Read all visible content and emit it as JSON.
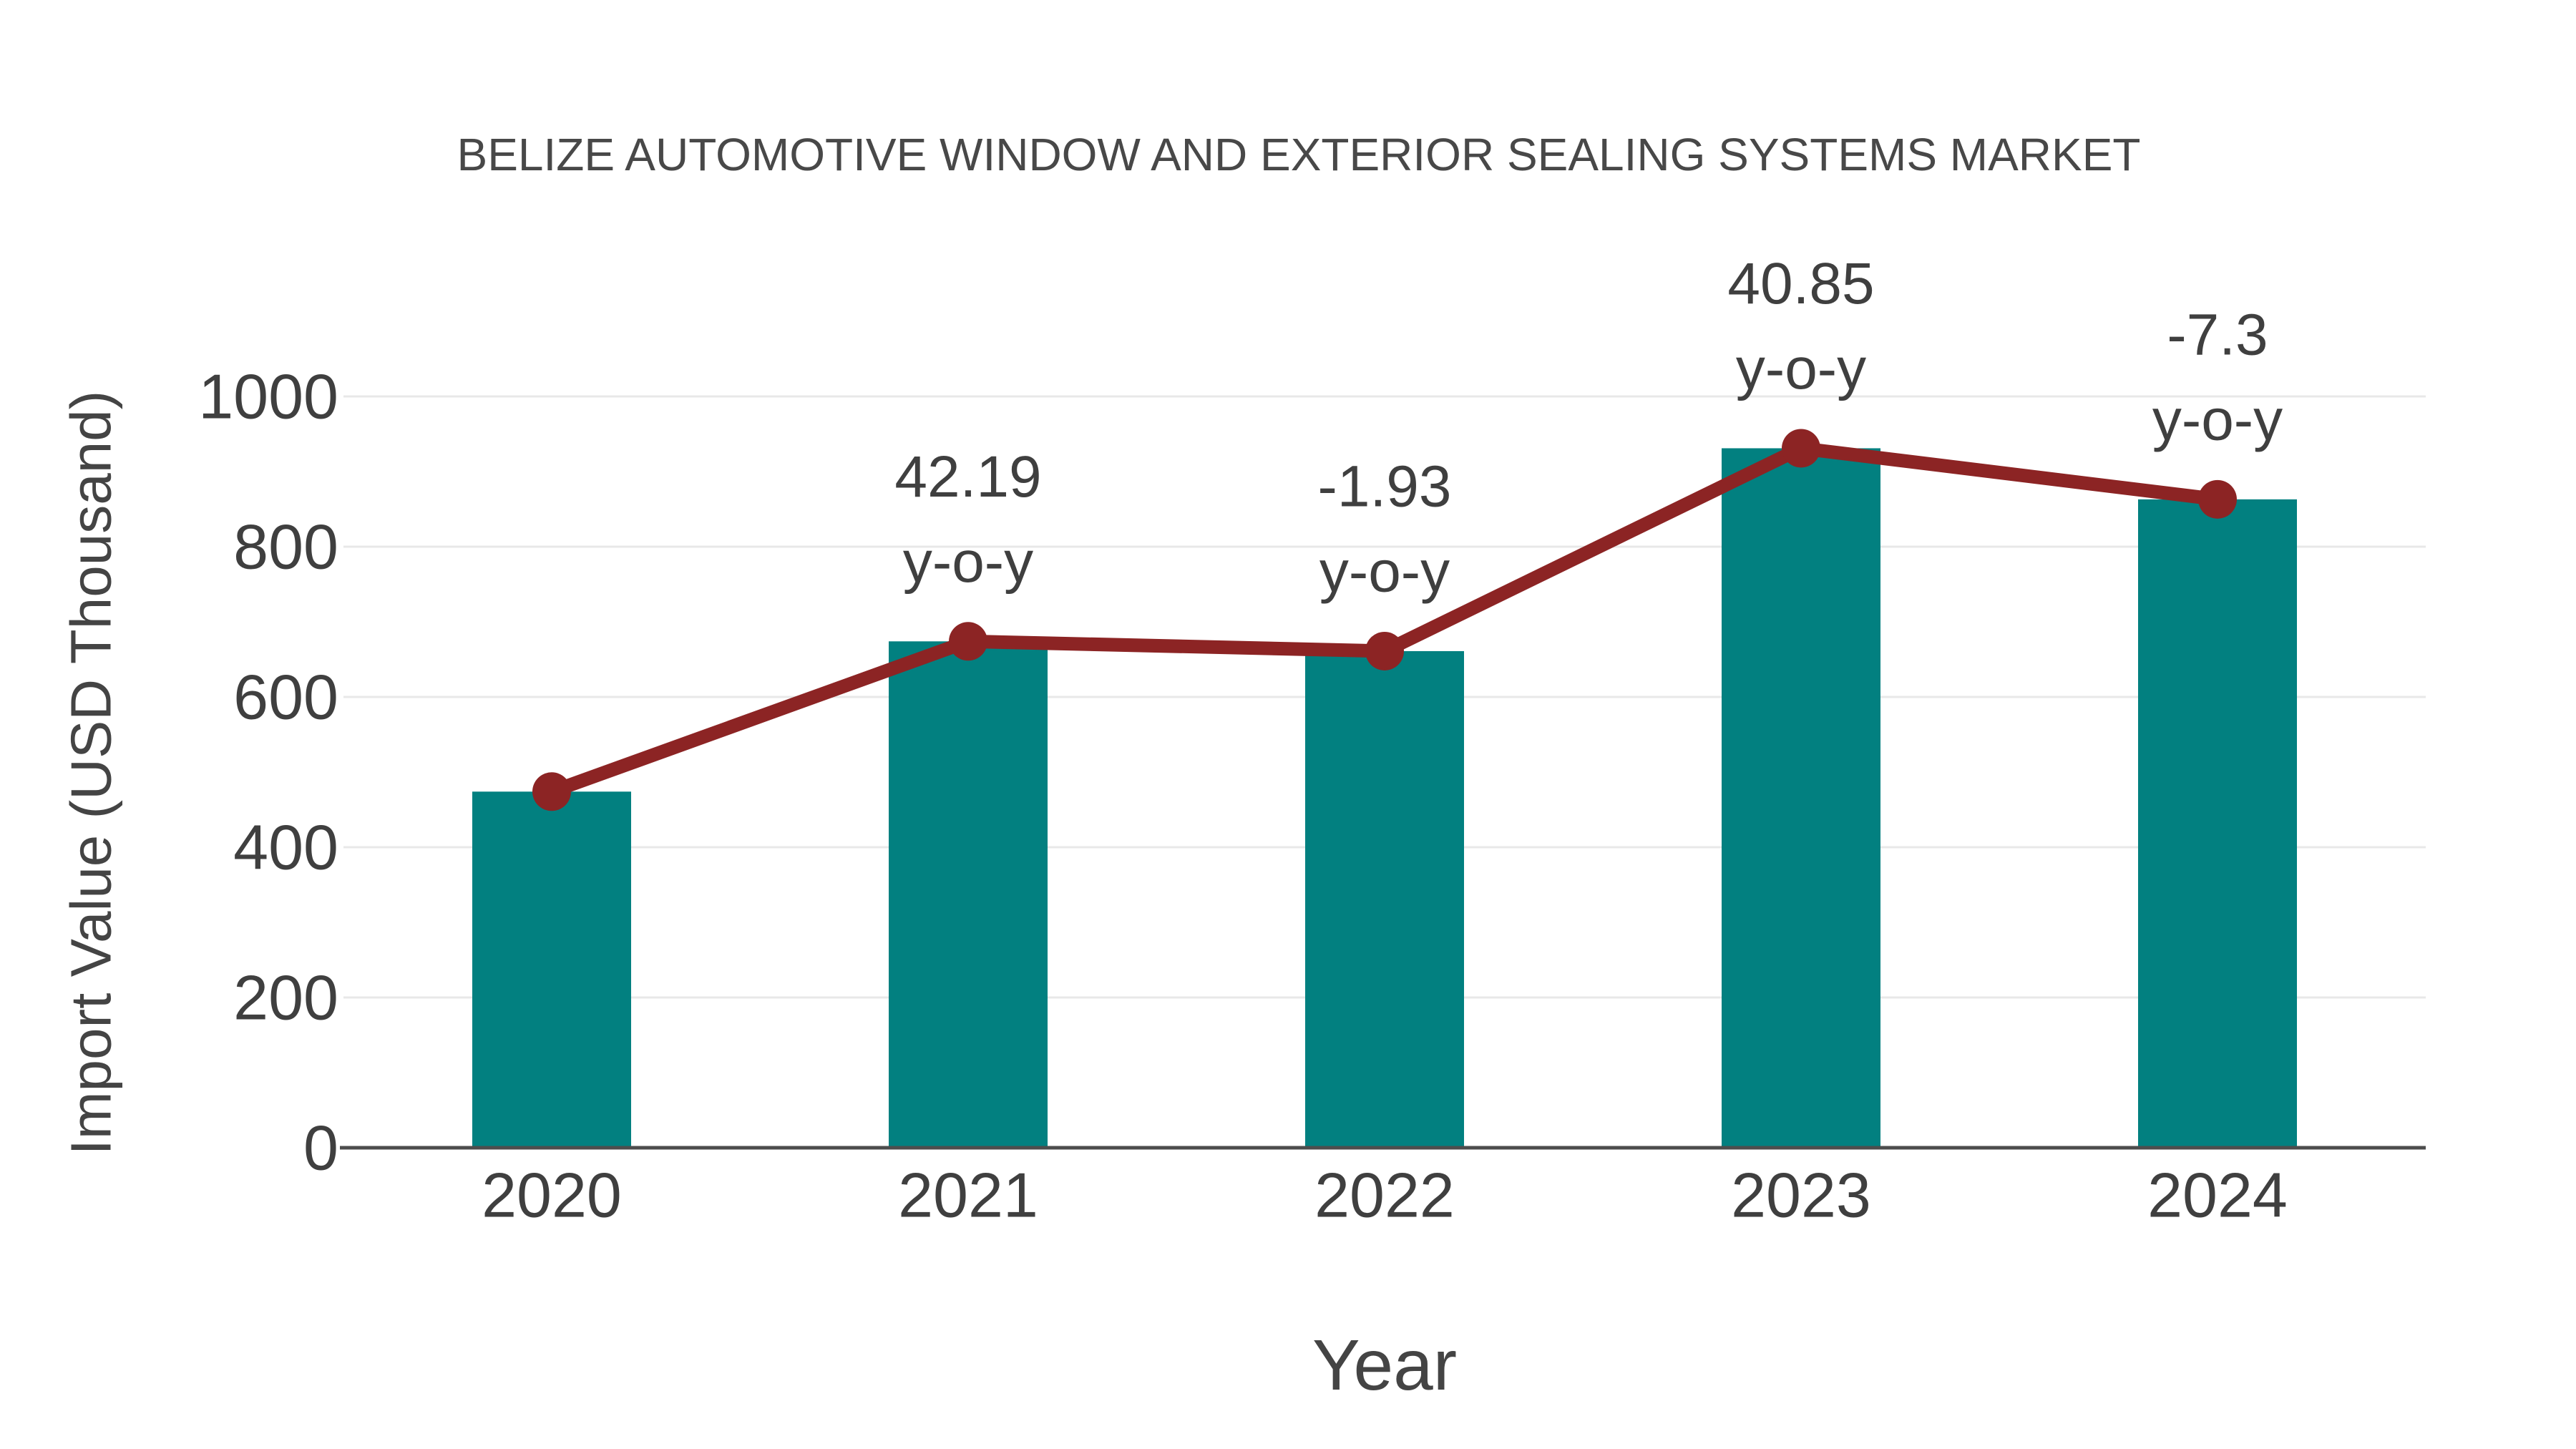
{
  "page": {
    "background_color": "#ffffff"
  },
  "chart": {
    "title": "BELIZE AUTOMOTIVE WINDOW AND EXTERIOR SEALING SYSTEMS MARKET",
    "x_axis_title": "Year",
    "y_axis_title": "Import Value (USD Thousand)"
  },
  "chart_data": {
    "type": "bar",
    "title": "BELIZE AUTOMOTIVE WINDOW AND EXTERIOR SEALING SYSTEMS MARKET",
    "xlabel": "Year",
    "ylabel": "Import Value (USD Thousand)",
    "categories": [
      "2020",
      "2021",
      "2022",
      "2023",
      "2024"
    ],
    "series": [
      {
        "name": "Import Value bars",
        "type": "bar",
        "values": [
          474,
          674,
          661,
          931,
          863
        ]
      },
      {
        "name": "Import Value trend line",
        "type": "line",
        "values": [
          474,
          674,
          661,
          931,
          863
        ]
      }
    ],
    "annotations": [
      {
        "category": "2021",
        "line1": "42.19",
        "line2": "y-o-y"
      },
      {
        "category": "2022",
        "line1": "-1.93",
        "line2": "y-o-y"
      },
      {
        "category": "2023",
        "line1": "40.85",
        "line2": "y-o-y"
      },
      {
        "category": "2024",
        "line1": "-7.3",
        "line2": "y-o-y"
      }
    ],
    "yticks": [
      0,
      200,
      400,
      600,
      800,
      1000
    ],
    "ylim": [
      0,
      1040
    ],
    "grid": "horizontal",
    "legend": "none",
    "colors": {
      "bar": "#028080",
      "line": "#8C2424",
      "grid": "#E8E8E8",
      "axis_line": "#4D4D4D",
      "tick_text": "#3F3F3F",
      "title_text": "#484848"
    }
  }
}
